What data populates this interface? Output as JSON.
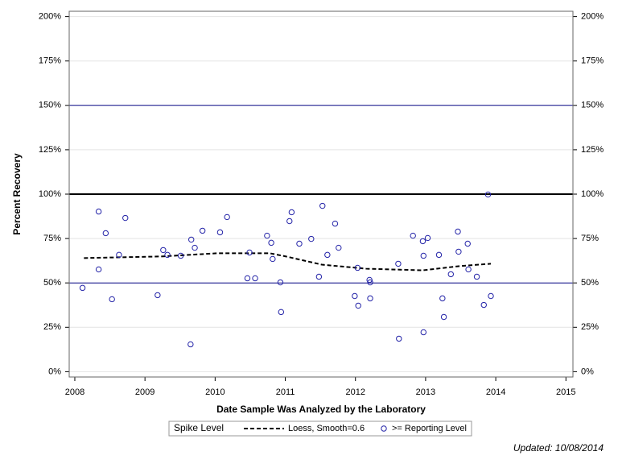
{
  "chart_data": {
    "type": "scatter",
    "x_label": "Date Sample Was Analyzed by the Laboratory",
    "y_label": "Percent Recovery",
    "xlim": [
      2007.92,
      2015.1
    ],
    "xticks": [
      2008,
      2009,
      2010,
      2011,
      2012,
      2013,
      2014,
      2015
    ],
    "ylim": [
      -3,
      203
    ],
    "yticks": [
      {
        "value": 0,
        "label": "0%"
      },
      {
        "value": 25,
        "label": "25%"
      },
      {
        "value": 50,
        "label": "50%"
      },
      {
        "value": 75,
        "label": "75%"
      },
      {
        "value": 100,
        "label": "100%"
      },
      {
        "value": 125,
        "label": "125%"
      },
      {
        "value": 150,
        "label": "150%"
      },
      {
        "value": 175,
        "label": "175%"
      },
      {
        "value": 200,
        "label": "200%"
      }
    ],
    "y2lim": [
      -3,
      203
    ],
    "y2ticks": [
      {
        "value": 0,
        "label": "0%"
      },
      {
        "value": 25,
        "label": "25%"
      },
      {
        "value": 50,
        "label": "50%"
      },
      {
        "value": 75,
        "label": "75%"
      },
      {
        "value": 100,
        "label": "100%"
      },
      {
        "value": 125,
        "label": "125%"
      },
      {
        "value": 150,
        "label": "150%"
      },
      {
        "value": 175,
        "label": "175%"
      },
      {
        "value": 200,
        "label": "200%"
      }
    ],
    "grid": true,
    "reference_lines": [
      {
        "value": 50,
        "color": "#000080",
        "width": 1
      },
      {
        "value": 100,
        "color": "#000000",
        "width": 2
      },
      {
        "value": 150,
        "color": "#000080",
        "width": 1
      }
    ],
    "legend_title": "Spike Level",
    "legend_position": "bottom",
    "series": [
      {
        "name": "Loess, Smooth=0.6",
        "mode": "line",
        "color": "#000000",
        "x": [
          2008.13,
          2009.23,
          2010.03,
          2010.78,
          2011.01,
          2011.52,
          2012.15,
          2012.96,
          2013.47,
          2013.93
        ],
        "values": [
          64.0,
          64.9,
          66.7,
          66.7,
          64.9,
          60.3,
          58.0,
          57.1,
          59.4,
          60.8
        ]
      },
      {
        "name": ">= Reporting Level",
        "mode": "markers",
        "color": "#2424a8",
        "x": [
          2008.11,
          2008.34,
          2008.34,
          2008.44,
          2008.53,
          2008.63,
          2008.72,
          2009.18,
          2009.26,
          2009.32,
          2009.51,
          2009.65,
          2009.66,
          2009.71,
          2009.82,
          2010.07,
          2010.17,
          2010.46,
          2010.49,
          2010.57,
          2010.74,
          2010.8,
          2010.82,
          2010.93,
          2010.94,
          2011.06,
          2011.09,
          2011.2,
          2011.37,
          2011.48,
          2011.53,
          2011.6,
          2011.71,
          2011.76,
          2011.99,
          2012.03,
          2012.04,
          2012.2,
          2012.21,
          2012.21,
          2012.61,
          2012.62,
          2012.82,
          2012.96,
          2012.97,
          2012.97,
          2013.03,
          2013.19,
          2013.24,
          2013.26,
          2013.36,
          2013.46,
          2013.47,
          2013.6,
          2013.61,
          2013.73,
          2013.83,
          2013.89,
          2013.93
        ],
        "values": [
          47.2,
          90.2,
          57.6,
          78.0,
          40.8,
          65.8,
          86.6,
          43.1,
          68.5,
          65.8,
          65.3,
          15.4,
          74.4,
          69.8,
          79.4,
          78.5,
          87.1,
          52.6,
          67.1,
          52.6,
          76.6,
          72.6,
          63.5,
          50.3,
          33.6,
          84.8,
          89.8,
          72.1,
          74.8,
          53.5,
          93.4,
          65.8,
          83.4,
          69.8,
          42.6,
          58.5,
          37.2,
          51.7,
          50.3,
          41.3,
          60.8,
          18.6,
          76.6,
          73.5,
          65.3,
          22.2,
          75.3,
          65.8,
          41.3,
          30.8,
          54.9,
          78.9,
          67.6,
          72.1,
          57.6,
          53.5,
          37.6,
          99.8,
          42.6
        ]
      }
    ],
    "footnote": "Updated: 10/08/2014"
  }
}
